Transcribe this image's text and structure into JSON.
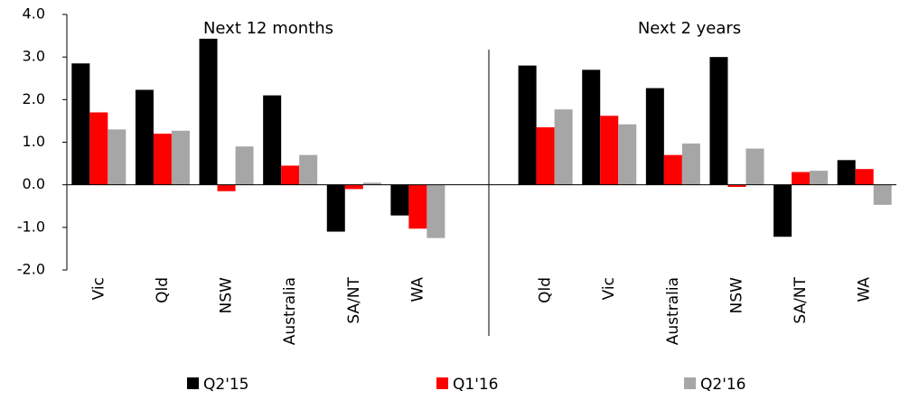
{
  "chart_data": {
    "type": "bar",
    "annotations": [
      "Next 12 months",
      "Next 2 years"
    ],
    "categories": [
      "Vic",
      "Qld",
      "NSW",
      "Australia",
      "SA/NT",
      "WA",
      null,
      "Qld",
      "Vic",
      "Australia",
      "NSW",
      "SA/NT",
      "WA"
    ],
    "series": [
      {
        "name": "Q2'15",
        "color": "#000000",
        "values": [
          2.85,
          2.23,
          3.43,
          2.1,
          -1.1,
          -0.72,
          null,
          2.8,
          2.7,
          2.27,
          3.0,
          -1.22,
          0.58
        ]
      },
      {
        "name": "Q1'16",
        "color": "#ff0000",
        "values": [
          1.7,
          1.2,
          -0.15,
          0.45,
          -0.1,
          -1.03,
          null,
          1.35,
          1.62,
          0.7,
          -0.05,
          0.3,
          0.37
        ]
      },
      {
        "name": "Q2'16",
        "color": "#a6a6a6",
        "values": [
          1.3,
          1.27,
          0.9,
          0.7,
          0.05,
          -1.25,
          null,
          1.77,
          1.42,
          0.97,
          0.85,
          0.33,
          -0.47
        ]
      }
    ],
    "ylim": [
      -2,
      4
    ],
    "yticks": [
      {
        "value": -2,
        "label": "-2.0"
      },
      {
        "value": -1,
        "label": "-1.0"
      },
      {
        "value": 0,
        "label": "0.0"
      },
      {
        "value": 1,
        "label": "1.0"
      },
      {
        "value": 2,
        "label": "2.0"
      },
      {
        "value": 3,
        "label": "3.0"
      },
      {
        "value": 4,
        "label": "4.0"
      }
    ],
    "grid": false,
    "legend": "bottom"
  }
}
